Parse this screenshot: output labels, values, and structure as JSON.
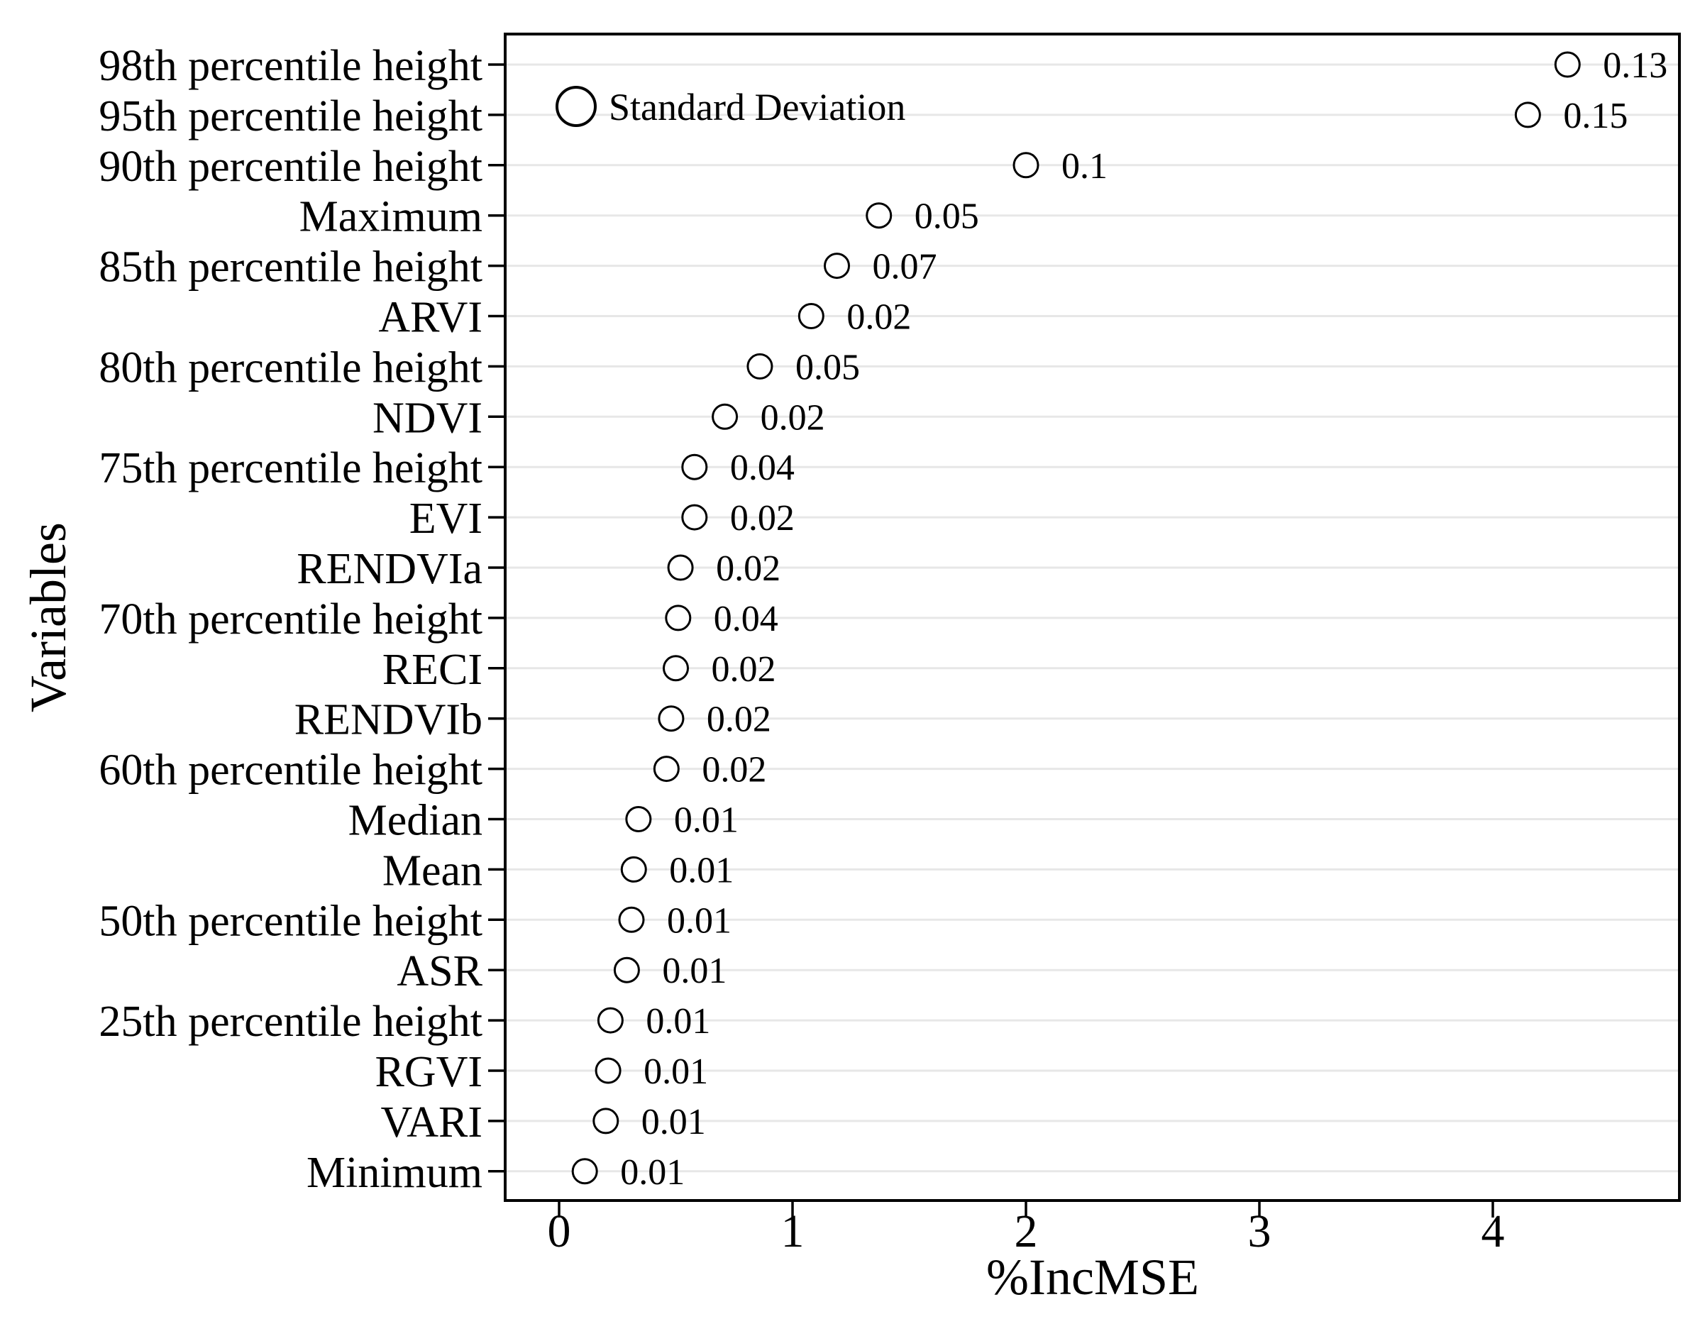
{
  "chart_data": {
    "type": "scatter",
    "title": "",
    "xlabel": "%IncMSE",
    "ylabel": "Variables",
    "xlim": [
      -0.23,
      4.8
    ],
    "x_ticks": [
      0,
      1,
      2,
      3,
      4
    ],
    "x_tick_labels": [
      "0",
      "1",
      "2",
      "3",
      "4"
    ],
    "grid": "horizontal-only",
    "legend": {
      "label": "Standard Deviation",
      "position": "inside-top-left",
      "marker": "open-circle"
    },
    "marker": {
      "shape": "open-circle",
      "stroke": "#000000",
      "fill": "#ffffff"
    },
    "colors": {
      "grid": "#e7e7e7",
      "axis": "#000000",
      "text": "#000000",
      "background": "#ffffff"
    },
    "categories": [
      "98th percentile height",
      "95th percentile height",
      "90th percentile height",
      "Maximum",
      "85th percentile height",
      "ARVI",
      "80th percentile height",
      "NDVI",
      "75th percentile height",
      "EVI",
      "RENDVIa",
      "70th percentile height",
      "RECI",
      "RENDVIb",
      "60th percentile height",
      "Median",
      "Mean",
      "50th percentile height",
      "ASR",
      "25th percentile height",
      "RGVI",
      "VARI",
      "Minimum"
    ],
    "series": [
      {
        "name": "%IncMSE",
        "values": [
          4.32,
          4.15,
          2.0,
          1.37,
          1.19,
          1.08,
          0.86,
          0.71,
          0.58,
          0.58,
          0.52,
          0.51,
          0.5,
          0.48,
          0.46,
          0.34,
          0.32,
          0.31,
          0.29,
          0.22,
          0.21,
          0.2,
          0.11
        ]
      },
      {
        "name": "Standard Deviation",
        "values": [
          0.13,
          0.15,
          0.1,
          0.05,
          0.07,
          0.02,
          0.05,
          0.02,
          0.04,
          0.02,
          0.02,
          0.04,
          0.02,
          0.02,
          0.02,
          0.01,
          0.01,
          0.01,
          0.01,
          0.01,
          0.01,
          0.01,
          0.01
        ]
      }
    ],
    "point_labels": [
      "0.13",
      "0.15",
      "0.1",
      "0.05",
      "0.07",
      "0.02",
      "0.05",
      "0.02",
      "0.04",
      "0.02",
      "0.02",
      "0.04",
      "0.02",
      "0.02",
      "0.02",
      "0.01",
      "0.01",
      "0.01",
      "0.01",
      "0.01",
      "0.01",
      "0.01",
      "0.01"
    ]
  }
}
